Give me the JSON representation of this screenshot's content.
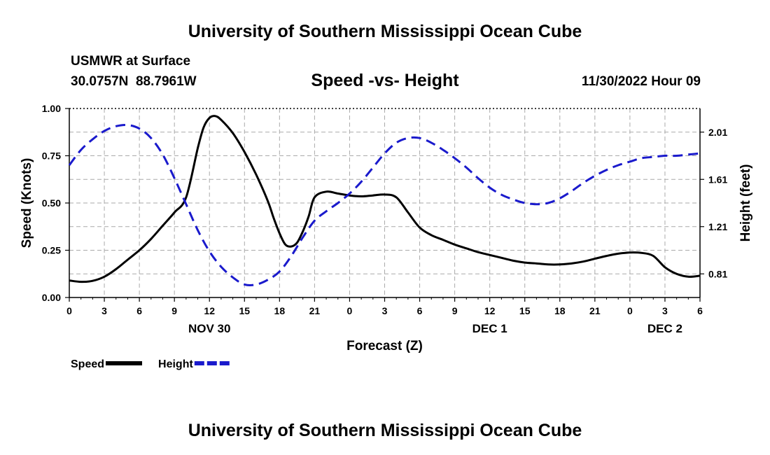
{
  "header": {
    "title": "University of Southern Mississippi Ocean Cube",
    "station": "USMWR at Surface",
    "coords": "30.0757N  88.7961W",
    "subtitle": "Speed -vs- Height",
    "datetime": "11/30/2022 Hour 09"
  },
  "footer": {
    "title": "University of Southern Mississippi Ocean Cube"
  },
  "chart_data": {
    "type": "line",
    "title": "Speed -vs- Height",
    "xlabel": "Forecast (Z)",
    "ylabel": "Speed (Knots)",
    "y2label": "Height (feet)",
    "xlim": [
      0,
      54
    ],
    "ylim": [
      0,
      1
    ],
    "y2lim": [
      0.61,
      2.21
    ],
    "grid": true,
    "legend_position": "bottom-left",
    "x_ticks": [
      0,
      3,
      6,
      9,
      12,
      15,
      18,
      21,
      24,
      27,
      30,
      33,
      36,
      39,
      42,
      45,
      48,
      51,
      54
    ],
    "x_tick_labels": [
      "0",
      "3",
      "6",
      "9",
      "12",
      "15",
      "18",
      "21",
      "0",
      "3",
      "6",
      "9",
      "12",
      "15",
      "18",
      "21",
      "0",
      "3",
      "6"
    ],
    "y_ticks": [
      0,
      0.25,
      0.5,
      0.75,
      1.0
    ],
    "y_tick_labels": [
      "0.00",
      "0.25",
      "0.50",
      "0.75",
      "1.00"
    ],
    "y2_ticks": [
      0.81,
      1.21,
      1.61,
      2.01
    ],
    "y2_tick_labels": [
      "0.81",
      "1.21",
      "1.61",
      "2.01"
    ],
    "day_labels": [
      {
        "x": 12,
        "label": "NOV 30"
      },
      {
        "x": 36,
        "label": "DEC 1"
      },
      {
        "x": 51,
        "label": "DEC 2"
      }
    ],
    "series": [
      {
        "name": "Speed",
        "axis": "left",
        "color": "#000000",
        "dash": "solid",
        "x": [
          0,
          1,
          2,
          3,
          4,
          5,
          6,
          7,
          8,
          9,
          10,
          11,
          11.5,
          12,
          12.5,
          13,
          14,
          15,
          16,
          17,
          17.5,
          18,
          18.5,
          19,
          19.5,
          20,
          20.5,
          21,
          22,
          23,
          24,
          25,
          26,
          27,
          28,
          29,
          30,
          31,
          32,
          33,
          34,
          35,
          36,
          37,
          38,
          39,
          40,
          41,
          42,
          43,
          44,
          45,
          46,
          47,
          48,
          49,
          50,
          51,
          52,
          53,
          54
        ],
        "values": [
          0.09,
          0.083,
          0.088,
          0.11,
          0.15,
          0.2,
          0.25,
          0.31,
          0.38,
          0.45,
          0.53,
          0.79,
          0.9,
          0.95,
          0.96,
          0.94,
          0.87,
          0.77,
          0.65,
          0.51,
          0.42,
          0.34,
          0.28,
          0.27,
          0.29,
          0.35,
          0.43,
          0.53,
          0.56,
          0.55,
          0.54,
          0.535,
          0.54,
          0.545,
          0.53,
          0.45,
          0.37,
          0.33,
          0.305,
          0.28,
          0.26,
          0.24,
          0.225,
          0.21,
          0.195,
          0.185,
          0.18,
          0.175,
          0.175,
          0.18,
          0.19,
          0.205,
          0.22,
          0.232,
          0.238,
          0.236,
          0.22,
          0.16,
          0.125,
          0.11,
          0.115
        ]
      },
      {
        "name": "Height",
        "axis": "right",
        "color": "#1a1acc",
        "dash": "dashed",
        "x": [
          0,
          1,
          2,
          3,
          4,
          5,
          6,
          7,
          8,
          9,
          10,
          11,
          12,
          13,
          14,
          15,
          16,
          17,
          18,
          19,
          20,
          21,
          22,
          23,
          24,
          25,
          26,
          27,
          28,
          29,
          30,
          31,
          32,
          33,
          34,
          35,
          36,
          37,
          38,
          39,
          40,
          41,
          42,
          43,
          44,
          45,
          46,
          47,
          48,
          49,
          50,
          51,
          52,
          53,
          54
        ],
        "values": [
          1.73,
          1.86,
          1.95,
          2.02,
          2.06,
          2.07,
          2.04,
          1.96,
          1.82,
          1.62,
          1.4,
          1.18,
          1.0,
          0.87,
          0.78,
          0.72,
          0.72,
          0.76,
          0.83,
          0.96,
          1.12,
          1.26,
          1.34,
          1.41,
          1.49,
          1.59,
          1.71,
          1.83,
          1.92,
          1.96,
          1.96,
          1.92,
          1.86,
          1.79,
          1.71,
          1.62,
          1.54,
          1.48,
          1.44,
          1.41,
          1.4,
          1.41,
          1.45,
          1.51,
          1.58,
          1.64,
          1.69,
          1.73,
          1.76,
          1.79,
          1.8,
          1.81,
          1.81,
          1.82,
          1.83
        ]
      }
    ]
  }
}
